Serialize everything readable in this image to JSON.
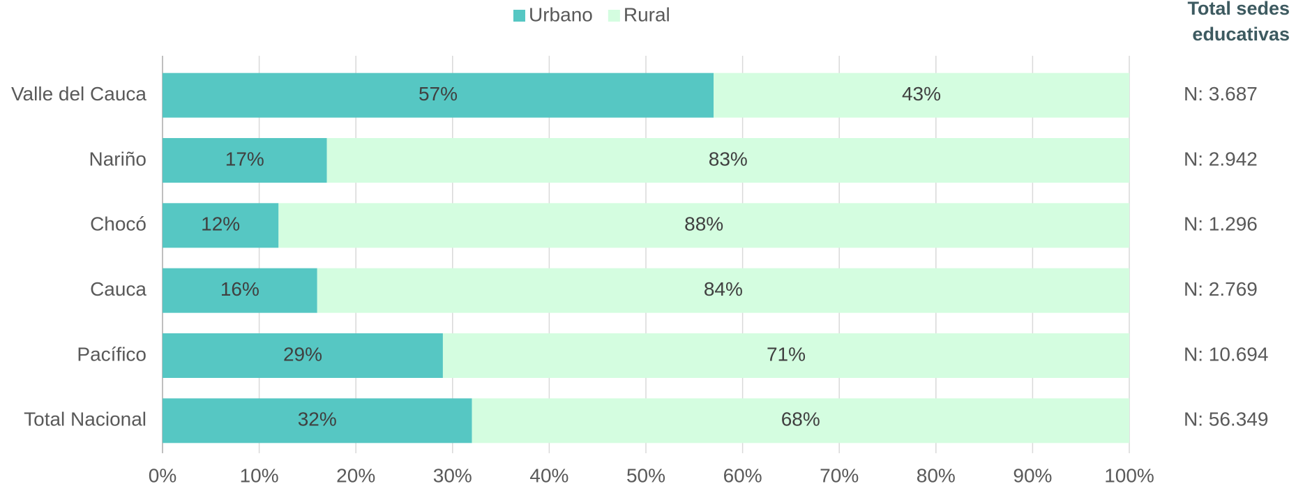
{
  "chart_data": {
    "type": "stacked_bar_horizontal",
    "categories": [
      "Valle del Cauca",
      "Nariño",
      "Chocó",
      "Cauca",
      "Pacífico",
      "Total Nacional"
    ],
    "series": [
      {
        "name": "Urbano",
        "color": "#56c7c3",
        "values": [
          57,
          17,
          12,
          16,
          29,
          32
        ],
        "value_labels": [
          "57%",
          "17%",
          "12%",
          "16%",
          "29%",
          "32%"
        ]
      },
      {
        "name": "Rural",
        "color": "#d4fde0",
        "values": [
          43,
          83,
          88,
          84,
          71,
          68
        ],
        "value_labels": [
          "43%",
          "83%",
          "88%",
          "84%",
          "71%",
          "68%"
        ]
      }
    ],
    "xlim": [
      0,
      100
    ],
    "xticks": [
      {
        "value": 0,
        "label": "0%"
      },
      {
        "value": 10,
        "label": "10%"
      },
      {
        "value": 20,
        "label": "20%"
      },
      {
        "value": 30,
        "label": "30%"
      },
      {
        "value": 40,
        "label": "40%"
      },
      {
        "value": 50,
        "label": "50%"
      },
      {
        "value": 60,
        "label": "60%"
      },
      {
        "value": 70,
        "label": "70%"
      },
      {
        "value": 80,
        "label": "80%"
      },
      {
        "value": 90,
        "label": "90%"
      },
      {
        "value": 100,
        "label": "100%"
      }
    ],
    "grid": true,
    "legend": "top",
    "totals_title": [
      "Total sedes",
      "educativas"
    ],
    "totals": [
      "N: 3.687",
      "N: 2.942",
      "N: 1.296",
      "N: 2.769",
      "N: 10.694",
      "N: 56.349"
    ]
  }
}
